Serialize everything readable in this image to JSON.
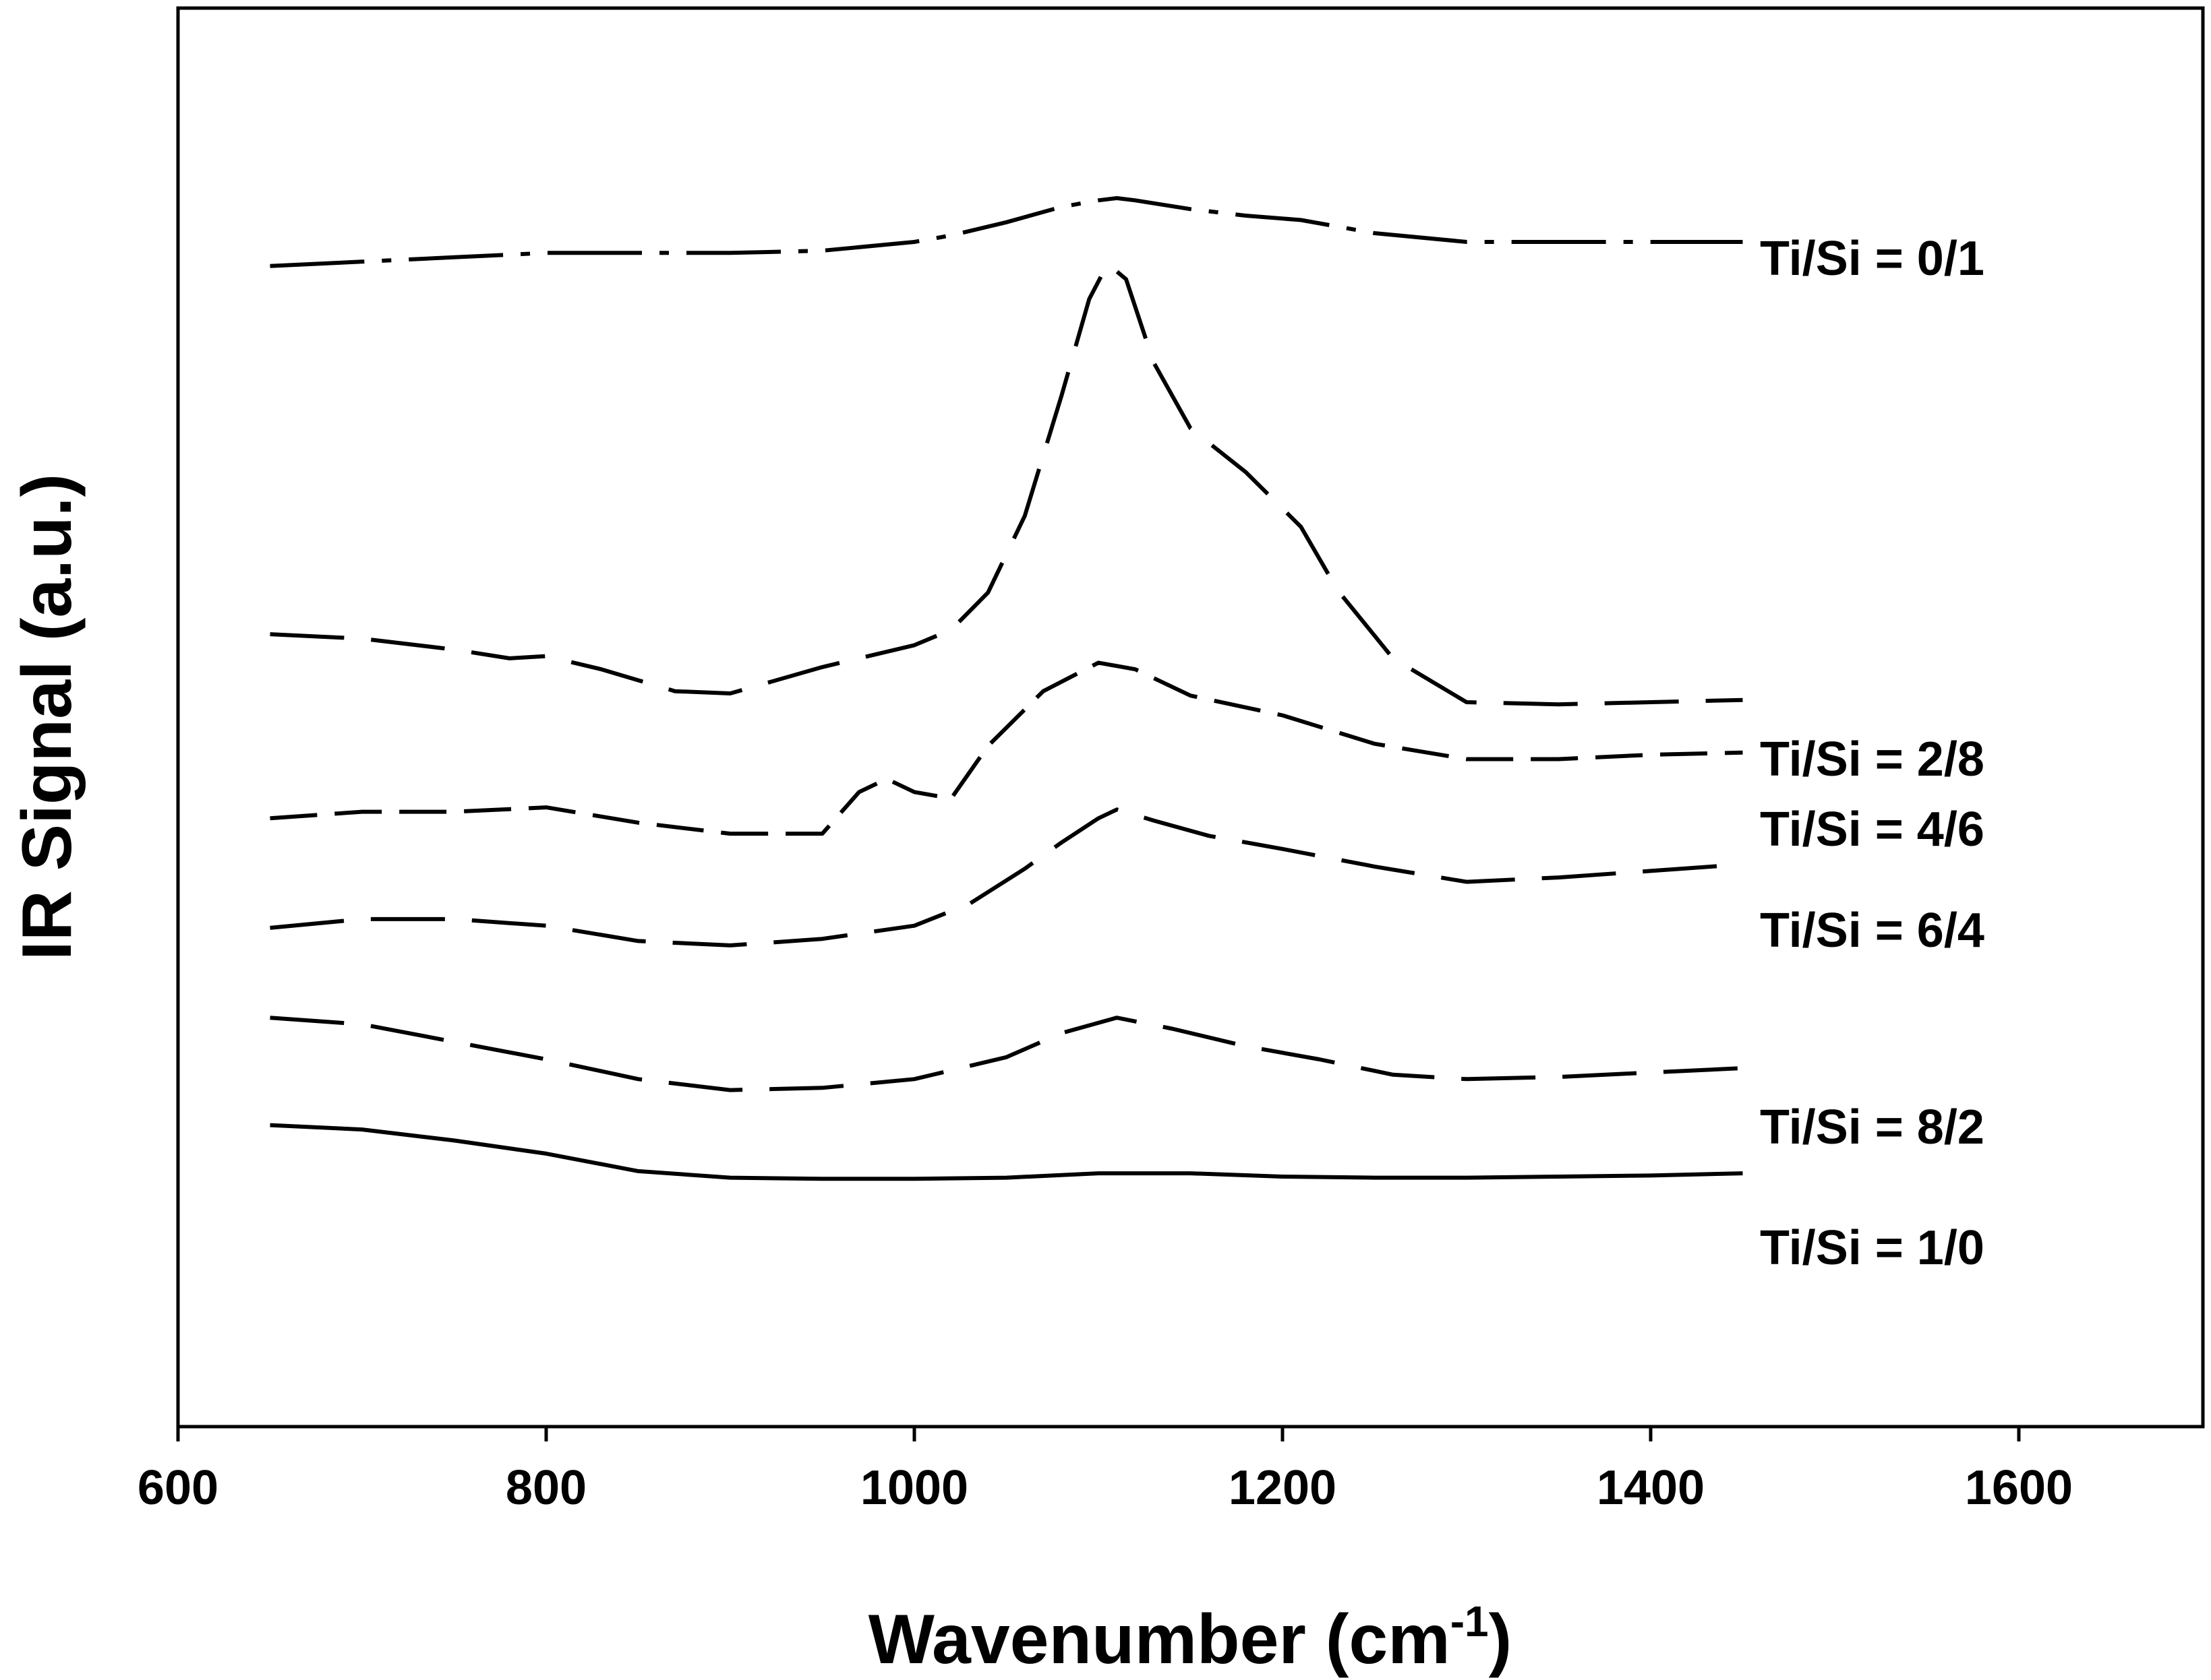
{
  "chart_data": {
    "type": "line",
    "title": "",
    "xlabel": "Wavenumber",
    "xlabel_unit_base": "cm",
    "xlabel_unit_exp": "-1",
    "xlabel_close": ")",
    "xlabel_open": " (",
    "ylabel": "IR Signal (a.u.)",
    "xlim": [
      600,
      1700
    ],
    "ylim": [
      0,
      10
    ],
    "x_ticks": [
      600,
      800,
      1000,
      1200,
      1400,
      1600
    ],
    "x_tick_labels": [
      "600",
      "800",
      "1000",
      "1200",
      "1400",
      "1600"
    ],
    "y_ticks_visible": false,
    "grid": false,
    "line_color": "#000000",
    "series": [
      {
        "name": "Ti/Si = 0/1",
        "dash": "dashdot",
        "x": [
          650,
          700,
          750,
          800,
          850,
          900,
          950,
          1000,
          1020,
          1050,
          1080,
          1100,
          1110,
          1120,
          1150,
          1180,
          1210,
          1250,
          1300,
          1350,
          1400,
          1450
        ],
        "y": [
          9.38,
          9.42,
          9.46,
          9.5,
          9.5,
          9.5,
          9.52,
          9.6,
          9.66,
          9.78,
          9.92,
          9.98,
          10.0,
          9.98,
          9.9,
          9.84,
          9.8,
          9.68,
          9.6,
          9.6,
          9.6,
          9.6
        ]
      },
      {
        "name": "Ti/Si = 2/8",
        "dash": "longdash",
        "x": [
          650,
          700,
          750,
          780,
          800,
          830,
          870,
          900,
          950,
          1000,
          1020,
          1040,
          1060,
          1080,
          1095,
          1105,
          1115,
          1130,
          1150,
          1180,
          1210,
          1230,
          1260,
          1300,
          1350,
          1400,
          1450
        ],
        "y": [
          6.02,
          5.98,
          5.88,
          5.8,
          5.82,
          5.7,
          5.5,
          5.48,
          5.72,
          5.92,
          6.06,
          6.4,
          7.1,
          8.2,
          9.08,
          9.4,
          9.26,
          8.5,
          7.9,
          7.5,
          7.0,
          6.42,
          5.8,
          5.4,
          5.38,
          5.4,
          5.42
        ]
      },
      {
        "name": "Ti/Si = 4/6",
        "dash": "mediumdash",
        "x": [
          650,
          700,
          750,
          800,
          850,
          900,
          950,
          970,
          985,
          1000,
          1020,
          1040,
          1070,
          1100,
          1120,
          1150,
          1200,
          1250,
          1300,
          1350,
          1400,
          1450
        ],
        "y": [
          4.34,
          4.4,
          4.4,
          4.44,
          4.3,
          4.2,
          4.2,
          4.58,
          4.7,
          4.58,
          4.52,
          5.0,
          5.5,
          5.76,
          5.7,
          5.46,
          5.28,
          5.02,
          4.88,
          4.88,
          4.92,
          4.94
        ]
      },
      {
        "name": "Ti/Si = 6/4",
        "dash": "longdash",
        "x": [
          650,
          700,
          750,
          800,
          850,
          900,
          950,
          1000,
          1030,
          1060,
          1080,
          1100,
          1110,
          1130,
          1160,
          1200,
          1250,
          1300,
          1350,
          1400,
          1450
        ],
        "y": [
          3.34,
          3.42,
          3.42,
          3.36,
          3.22,
          3.18,
          3.24,
          3.36,
          3.56,
          3.88,
          4.12,
          4.34,
          4.42,
          4.32,
          4.18,
          4.06,
          3.9,
          3.76,
          3.8,
          3.86,
          3.92
        ]
      },
      {
        "name": "Ti/Si = 8/2",
        "dash": "longdash",
        "x": [
          650,
          700,
          750,
          800,
          850,
          900,
          950,
          1000,
          1050,
          1080,
          1110,
          1140,
          1180,
          1220,
          1260,
          1300,
          1350,
          1400,
          1450
        ],
        "y": [
          2.52,
          2.46,
          2.3,
          2.14,
          1.96,
          1.86,
          1.88,
          1.96,
          2.16,
          2.38,
          2.52,
          2.42,
          2.26,
          2.14,
          2.0,
          1.96,
          1.98,
          2.02,
          2.06
        ]
      },
      {
        "name": "Ti/Si = 1/0",
        "dash": "solid",
        "x": [
          650,
          700,
          750,
          800,
          850,
          900,
          950,
          1000,
          1050,
          1100,
          1150,
          1200,
          1250,
          1300,
          1350,
          1400,
          1450
        ],
        "y": [
          1.54,
          1.5,
          1.4,
          1.28,
          1.12,
          1.06,
          1.05,
          1.05,
          1.06,
          1.1,
          1.1,
          1.07,
          1.06,
          1.06,
          1.07,
          1.08,
          1.1
        ]
      }
    ]
  }
}
